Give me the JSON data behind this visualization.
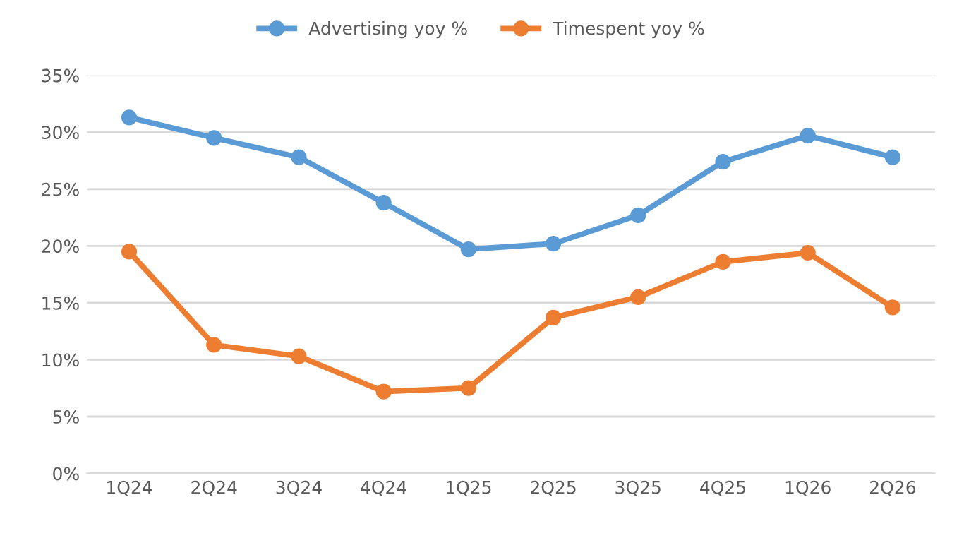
{
  "chart_data": {
    "type": "line",
    "categories": [
      "1Q24",
      "2Q24",
      "3Q24",
      "4Q24",
      "1Q25",
      "2Q25",
      "3Q25",
      "4Q25",
      "1Q26",
      "2Q26"
    ],
    "series": [
      {
        "name": "Advertising yoy %",
        "color": "#5b9bd5",
        "values": [
          31.3,
          29.5,
          27.8,
          23.8,
          19.7,
          20.2,
          22.7,
          27.4,
          29.7,
          27.8
        ]
      },
      {
        "name": "Timespent yoy %",
        "color": "#ed7d31",
        "values": [
          19.5,
          11.3,
          10.3,
          7.2,
          7.5,
          13.7,
          15.5,
          18.6,
          19.4,
          14.6
        ]
      }
    ],
    "ylim": [
      0,
      35
    ],
    "yticks": [
      {
        "value": 0,
        "label": "0%"
      },
      {
        "value": 5,
        "label": "5%"
      },
      {
        "value": 10,
        "label": "10%"
      },
      {
        "value": 15,
        "label": "15%"
      },
      {
        "value": 20,
        "label": "20%"
      },
      {
        "value": 25,
        "label": "25%"
      },
      {
        "value": 30,
        "label": "30%"
      },
      {
        "value": 35,
        "label": "35%"
      }
    ],
    "grid": "y",
    "legend": "top",
    "marker": "circle",
    "line_style": "solid"
  }
}
